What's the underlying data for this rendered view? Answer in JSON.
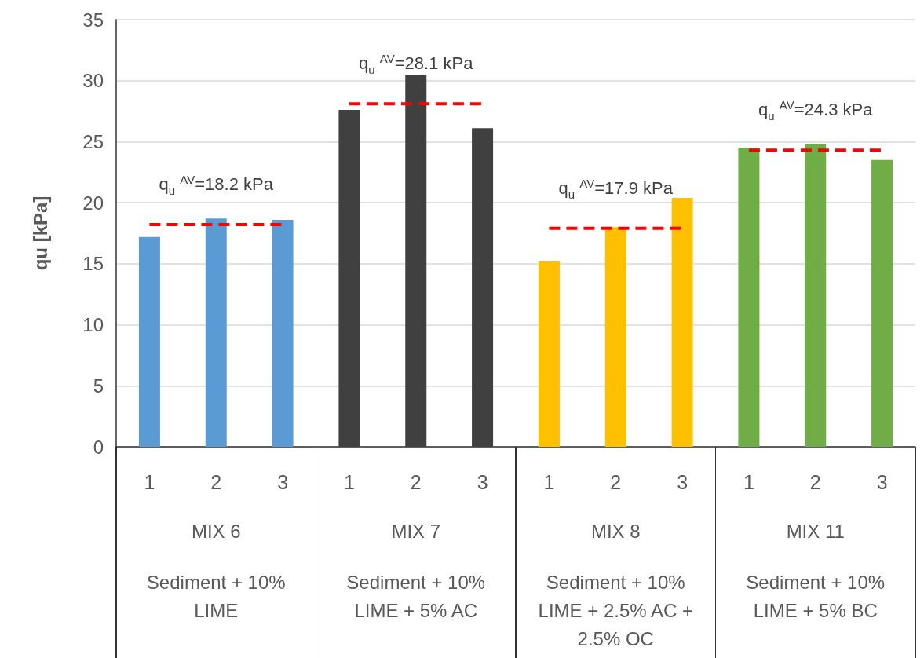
{
  "chart_data": {
    "type": "bar",
    "ylabel": "qu [kPa]",
    "categories": [
      "1",
      "2",
      "3",
      "1",
      "2",
      "3",
      "1",
      "2",
      "3",
      "1",
      "2",
      "3"
    ],
    "series": [
      {
        "colors": [
          "#5b9bd5",
          "#5b9bd5",
          "#5b9bd5",
          "#404040",
          "#404040",
          "#404040",
          "#ffc000",
          "#ffc000",
          "#ffc000",
          "#70ad47",
          "#70ad47",
          "#70ad47"
        ],
        "values": [
          17.2,
          18.7,
          18.6,
          27.6,
          30.5,
          26.1,
          15.2,
          18.0,
          20.4,
          24.5,
          24.8,
          23.5
        ]
      },
      {
        "type": "line",
        "color": "#ff0000",
        "values": [
          18.2,
          18.2,
          18.2,
          null,
          null,
          null,
          null,
          null,
          null,
          null,
          null,
          null
        ]
      },
      {
        "type": "line",
        "color": "#ff0000",
        "values": [
          null,
          null,
          null,
          28.1,
          28.1,
          28.1,
          null,
          null,
          null,
          null,
          null,
          null
        ]
      },
      {
        "type": "line",
        "color": "#ff0000",
        "values": [
          null,
          null,
          null,
          null,
          null,
          null,
          17.9,
          17.9,
          17.9,
          null,
          null,
          null
        ]
      },
      {
        "type": "line",
        "color": "#ff0000",
        "values": [
          null,
          null,
          null,
          null,
          null,
          null,
          null,
          null,
          null,
          24.3,
          24.3,
          24.3
        ]
      }
    ],
    "line_style": "dashed",
    "marker": "none",
    "grid": "y",
    "ylim": [
      0,
      35
    ],
    "yticks": [
      0,
      5,
      10,
      15,
      20,
      25,
      30,
      35
    ],
    "annotations": [
      {
        "text": "q$_{u}$ $^{AV}$=18.2 kPa",
        "y": 18.2
      },
      {
        "text": "q$_{u}$ $^{AV}$=28.1 kPa",
        "y": 28.1
      },
      {
        "text": "q$_{u}$ $^{AV}$=17.9 kPa",
        "y": 17.9
      },
      {
        "text": "q$_{u}$ $^{AV}$=24.3 kPa",
        "y": 24.3
      },
      "MIX 6",
      "Sediment + 10% LIME",
      "MIX 7",
      "Sediment + 10% LIME + 5% AC",
      "MIX 8",
      "Sediment + 10% LIME + 2.5% AC + 2.5% OC",
      "MIX 11",
      "Sediment + 10% LIME + 5% BC"
    ]
  }
}
